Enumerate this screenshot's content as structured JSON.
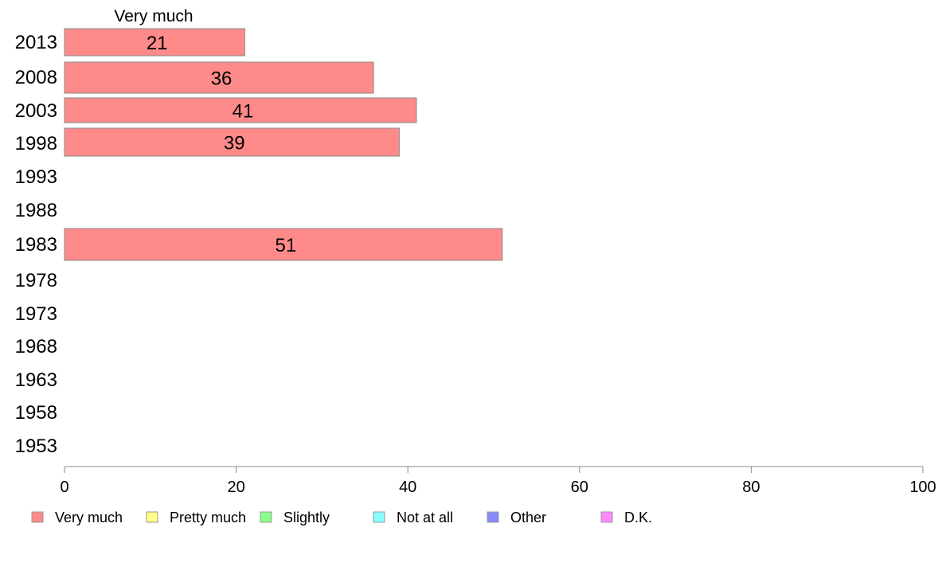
{
  "chart_data": {
    "type": "bar",
    "orientation": "horizontal",
    "series_title": "Very much",
    "categories": [
      "2013",
      "2008",
      "2003",
      "1998",
      "1993",
      "1988",
      "1983",
      "1978",
      "1973",
      "1968",
      "1963",
      "1958",
      "1953"
    ],
    "series": [
      {
        "name": "Very much",
        "color": "#ff8a8a",
        "values": [
          21,
          36,
          41,
          39,
          null,
          null,
          51,
          null,
          null,
          null,
          null,
          null,
          null
        ],
        "labels": [
          "21",
          "36",
          "41",
          "39",
          "",
          "",
          "51",
          "",
          "",
          "",
          "",
          "",
          ""
        ]
      }
    ],
    "xlim": [
      0,
      100
    ],
    "xticks": [
      "0",
      "20",
      "40",
      "60",
      "80",
      "100"
    ],
    "grid": false,
    "legend": {
      "position": "bottom",
      "items": [
        {
          "name": "Very much",
          "color": "#ff8a8a"
        },
        {
          "name": "Pretty much",
          "color": "#ffff88"
        },
        {
          "name": "Slightly",
          "color": "#88ff88"
        },
        {
          "name": "Not at all",
          "color": "#88ffff"
        },
        {
          "name": "Other",
          "color": "#8888ff"
        },
        {
          "name": "D.K.",
          "color": "#ff88ff"
        }
      ]
    }
  }
}
